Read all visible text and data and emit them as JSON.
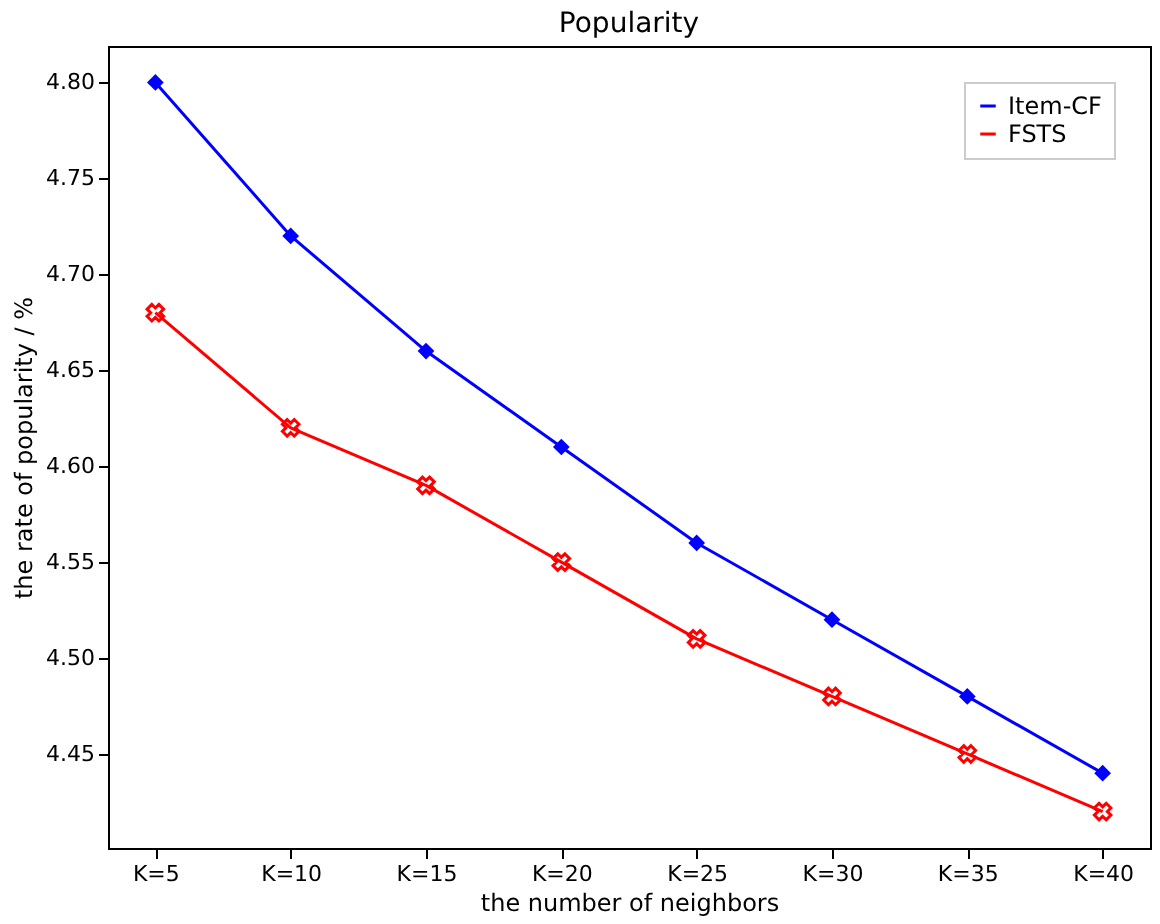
{
  "chart_data": {
    "type": "line",
    "title": "Popularity",
    "xlabel": "the number of neighbors",
    "ylabel": "the rate of popularity / %",
    "categories": [
      "K=5",
      "K=10",
      "K=15",
      "K=20",
      "K=25",
      "K=30",
      "K=35",
      "K=40"
    ],
    "series": [
      {
        "name": "Item-CF",
        "color": "#0000ff",
        "marker": "diamond",
        "values": [
          4.8,
          4.72,
          4.66,
          4.61,
          4.56,
          4.52,
          4.48,
          4.44
        ]
      },
      {
        "name": "FSTS",
        "color": "#ff0000",
        "marker": "cross",
        "values": [
          4.68,
          4.62,
          4.59,
          4.55,
          4.51,
          4.48,
          4.45,
          4.42
        ]
      }
    ],
    "ylim": [
      4.401,
      4.819
    ],
    "yticks": [
      {
        "value": 4.45,
        "label": "4.45"
      },
      {
        "value": 4.5,
        "label": "4.50"
      },
      {
        "value": 4.55,
        "label": "4.55"
      },
      {
        "value": 4.6,
        "label": "4.60"
      },
      {
        "value": 4.65,
        "label": "4.65"
      },
      {
        "value": 4.7,
        "label": "4.70"
      },
      {
        "value": 4.75,
        "label": "4.75"
      },
      {
        "value": 4.8,
        "label": "4.80"
      }
    ],
    "grid": false,
    "legend": "top right",
    "line_style": "solid"
  }
}
